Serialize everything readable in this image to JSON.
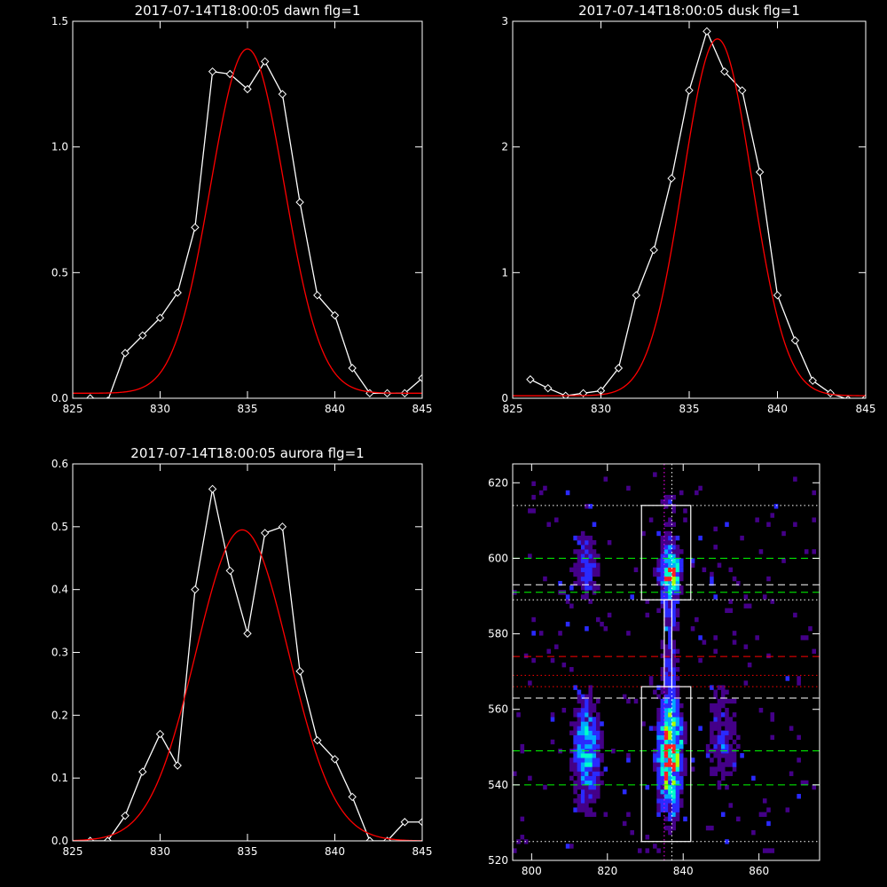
{
  "chart_data": [
    {
      "type": "line",
      "title": "2017-07-14T18:00:05 dawn flg=1",
      "xlim": [
        825,
        845
      ],
      "ylim": [
        0,
        1.5
      ],
      "xticks": [
        825,
        830,
        835,
        840,
        845
      ],
      "xtick_labels": [
        "825",
        "830",
        "835",
        "840",
        "845"
      ],
      "yticks": [
        0,
        0.5,
        1.0,
        1.5
      ],
      "ytick_labels": [
        "0.0",
        "0.5",
        "1.0",
        "1.5"
      ],
      "series": [
        {
          "style": "data",
          "color": "#ffffff",
          "marker": "diamond",
          "x": [
            826,
            827,
            828,
            829,
            830,
            831,
            832,
            833,
            834,
            835,
            836,
            837,
            838,
            839,
            840,
            841,
            842,
            843,
            844,
            845
          ],
          "y": [
            0.0,
            -0.01,
            0.18,
            0.25,
            0.32,
            0.42,
            0.68,
            1.3,
            1.29,
            1.23,
            1.34,
            1.21,
            0.78,
            0.41,
            0.33,
            0.12,
            0.02,
            0.02,
            0.02,
            0.08
          ]
        },
        {
          "style": "fit",
          "color": "#ff0000",
          "gaussian": {
            "amp": 1.37,
            "center": 835.0,
            "sigma": 2.1,
            "offset": 0.02
          }
        }
      ]
    },
    {
      "type": "line",
      "title": "2017-07-14T18:00:05 dusk flg=1",
      "xlim": [
        825,
        845
      ],
      "ylim": [
        0,
        3
      ],
      "xticks": [
        825,
        830,
        835,
        840,
        845
      ],
      "xtick_labels": [
        "825",
        "830",
        "835",
        "840",
        "845"
      ],
      "yticks": [
        0,
        1,
        2,
        3
      ],
      "ytick_labels": [
        "0",
        "1",
        "2",
        "3"
      ],
      "series": [
        {
          "style": "data",
          "color": "#ffffff",
          "marker": "diamond",
          "x": [
            826,
            827,
            828,
            829,
            830,
            831,
            832,
            833,
            834,
            835,
            836,
            837,
            838,
            839,
            840,
            841,
            842,
            843,
            844,
            845
          ],
          "y": [
            0.15,
            0.08,
            0.02,
            0.04,
            0.06,
            0.24,
            0.82,
            1.18,
            1.75,
            2.45,
            2.92,
            2.6,
            2.45,
            1.8,
            0.82,
            0.46,
            0.14,
            0.04,
            -0.01,
            0.0
          ]
        },
        {
          "style": "fit",
          "color": "#ff0000",
          "gaussian": {
            "amp": 2.84,
            "center": 836.6,
            "sigma": 1.95,
            "offset": 0.02
          }
        }
      ]
    },
    {
      "type": "line",
      "title": "2017-07-14T18:00:05 aurora flg=1",
      "xlim": [
        825,
        845
      ],
      "ylim": [
        0,
        0.6
      ],
      "xticks": [
        825,
        830,
        835,
        840,
        845
      ],
      "xtick_labels": [
        "825",
        "830",
        "835",
        "840",
        "845"
      ],
      "yticks": [
        0,
        0.1,
        0.2,
        0.3,
        0.4,
        0.5,
        0.6
      ],
      "ytick_labels": [
        "0.0",
        "0.1",
        "0.2",
        "0.3",
        "0.4",
        "0.5",
        "0.6"
      ],
      "series": [
        {
          "style": "data",
          "color": "#ffffff",
          "marker": "diamond",
          "x": [
            826,
            827,
            828,
            829,
            830,
            831,
            832,
            833,
            834,
            835,
            836,
            837,
            838,
            839,
            840,
            841,
            842,
            843,
            844,
            845
          ],
          "y": [
            0.0,
            0.0,
            0.04,
            0.11,
            0.17,
            0.12,
            0.4,
            0.56,
            0.43,
            0.33,
            0.49,
            0.5,
            0.27,
            0.16,
            0.13,
            0.07,
            0.0,
            0.0,
            0.03,
            0.03
          ]
        },
        {
          "style": "fit",
          "color": "#ff0000",
          "gaussian": {
            "amp": 0.495,
            "center": 834.7,
            "sigma": 2.65,
            "offset": 0.0
          }
        }
      ]
    },
    {
      "type": "heatmap",
      "xlim": [
        795,
        876
      ],
      "ylim": [
        520,
        625
      ],
      "xticks": [
        800,
        820,
        840,
        860
      ],
      "xtick_labels": [
        "800",
        "820",
        "840",
        "860"
      ],
      "yticks": [
        520,
        540,
        560,
        580,
        600,
        620
      ],
      "ytick_labels": [
        "520",
        "540",
        "560",
        "580",
        "600",
        "620"
      ],
      "colormap": [
        "#440088",
        "#2a2aff",
        "#00aaff",
        "#00ffcc",
        "#aaff00",
        "#ff2020"
      ],
      "sources": [
        {
          "x": 836,
          "y": 547,
          "sx": 2.0,
          "sy": 8,
          "amp": 1.0
        },
        {
          "x": 836,
          "y": 596,
          "sx": 1.8,
          "sy": 4,
          "amp": 0.8
        },
        {
          "x": 836,
          "y": 575,
          "sx": 1.5,
          "sy": 28,
          "amp": 0.25
        },
        {
          "x": 814,
          "y": 548,
          "sx": 2.2,
          "sy": 9,
          "amp": 0.55
        },
        {
          "x": 814,
          "y": 597,
          "sx": 2.0,
          "sy": 6,
          "amp": 0.3
        },
        {
          "x": 850,
          "y": 552,
          "sx": 3.0,
          "sy": 10,
          "amp": 0.2
        }
      ],
      "boxes": [
        {
          "x0": 829,
          "x1": 842,
          "y0": 589,
          "y1": 614,
          "color": "#ffffff"
        },
        {
          "x0": 829,
          "x1": 842,
          "y0": 525,
          "y1": 566,
          "color": "#ffffff"
        },
        {
          "x0": 835,
          "x1": 837,
          "y0": 566,
          "y1": 589,
          "color": "#ffffff"
        }
      ],
      "hlines": [
        {
          "y": 614,
          "color": "#ffffff",
          "dash": "dotted"
        },
        {
          "y": 600,
          "color": "#00ff00",
          "dash": "dashed"
        },
        {
          "y": 593,
          "color": "#ffffff",
          "dash": "dashed"
        },
        {
          "y": 591,
          "color": "#00ff00",
          "dash": "dashed"
        },
        {
          "y": 589,
          "color": "#ffffff",
          "dash": "dotted"
        },
        {
          "y": 574,
          "color": "#ff0000",
          "dash": "dashed"
        },
        {
          "y": 569,
          "color": "#ff0000",
          "dash": "dotted"
        },
        {
          "y": 566,
          "color": "#ff0000",
          "dash": "dotted"
        },
        {
          "y": 563,
          "color": "#ffffff",
          "dash": "dashed"
        },
        {
          "y": 549,
          "color": "#00ff00",
          "dash": "dashed"
        },
        {
          "y": 540,
          "color": "#00ff00",
          "dash": "dashed"
        },
        {
          "y": 525,
          "color": "#ffffff",
          "dash": "dotted"
        }
      ],
      "vlines": [
        {
          "x": 835,
          "color": "#ff00ff",
          "dash": "dotted"
        },
        {
          "x": 837,
          "color": "#ffffff",
          "dash": "dotted"
        }
      ]
    }
  ]
}
